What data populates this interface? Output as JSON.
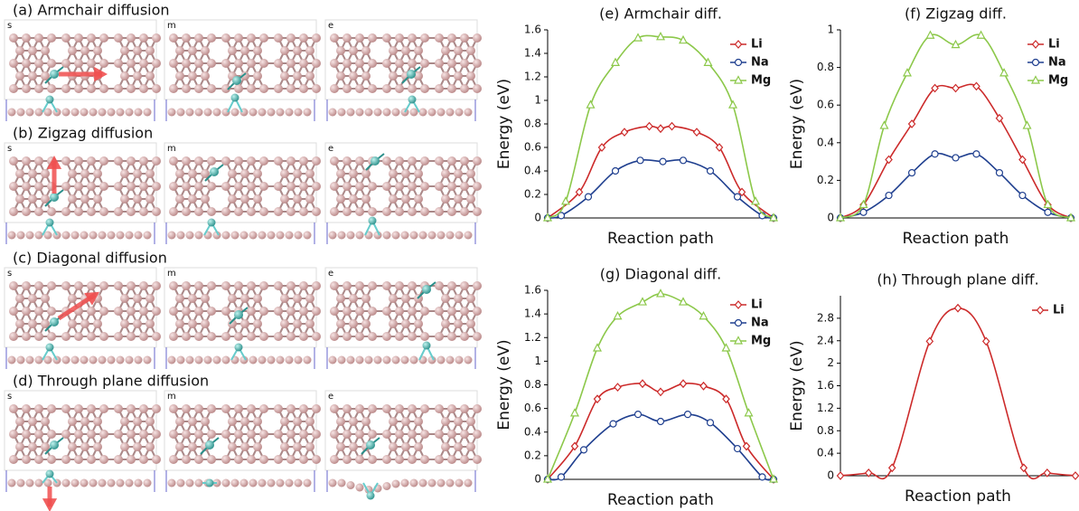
{
  "panels": [
    {
      "title": "(a) Armchair diffusion",
      "frames": [
        "s",
        "m",
        "e"
      ]
    },
    {
      "title": "(b) Zigzag diffusion",
      "frames": [
        "s",
        "m",
        "e"
      ]
    },
    {
      "title": "(c) Diagonal diffusion",
      "frames": [
        "s",
        "m",
        "e"
      ]
    },
    {
      "title": "(d) Through plane diffusion",
      "frames": [
        "s",
        "m",
        "e"
      ]
    }
  ],
  "chart_data": [
    {
      "type": "line",
      "title": "(e) Armchair diff.",
      "xlabel": "Reaction path",
      "ylabel": "Energy (eV)",
      "xlim": [
        0,
        1
      ],
      "ylim": [
        0,
        1.6
      ],
      "yticks": [
        0,
        0.2,
        0.4,
        0.6,
        0.8,
        1,
        1.2,
        1.4,
        1.6
      ],
      "legend": "upper right",
      "series": [
        {
          "name": "Li",
          "color": "#cc2a2a",
          "marker": "diamond",
          "x": [
            0,
            0.14,
            0.24,
            0.34,
            0.45,
            0.5,
            0.55,
            0.66,
            0.76,
            0.86,
            1
          ],
          "values": [
            0,
            0.22,
            0.6,
            0.73,
            0.78,
            0.76,
            0.78,
            0.73,
            0.6,
            0.22,
            0
          ]
        },
        {
          "name": "Na",
          "color": "#1f3f8f",
          "marker": "circle",
          "x": [
            0,
            0.06,
            0.18,
            0.3,
            0.41,
            0.51,
            0.6,
            0.72,
            0.84,
            0.95,
            1
          ],
          "values": [
            0,
            0.02,
            0.18,
            0.4,
            0.49,
            0.48,
            0.49,
            0.4,
            0.18,
            0.02,
            0
          ]
        },
        {
          "name": "Mg",
          "color": "#8cc84a",
          "marker": "triangle",
          "x": [
            0,
            0.08,
            0.19,
            0.3,
            0.4,
            0.5,
            0.6,
            0.71,
            0.82,
            0.92,
            1
          ],
          "values": [
            0,
            0.14,
            0.96,
            1.32,
            1.53,
            1.54,
            1.51,
            1.32,
            0.96,
            0.14,
            0
          ]
        }
      ]
    },
    {
      "type": "line",
      "title": "(f) Zigzag diff.",
      "xlabel": "Reaction path",
      "ylabel": "Energy (eV)",
      "xlim": [
        0,
        1
      ],
      "ylim": [
        0,
        1
      ],
      "yticks": [
        0,
        0.2,
        0.4,
        0.6,
        0.8,
        1
      ],
      "legend": "upper right",
      "series": [
        {
          "name": "Li",
          "color": "#cc2a2a",
          "marker": "diamond",
          "x": [
            0,
            0.1,
            0.21,
            0.31,
            0.41,
            0.5,
            0.59,
            0.69,
            0.79,
            0.9,
            1
          ],
          "values": [
            0,
            0.07,
            0.31,
            0.5,
            0.69,
            0.69,
            0.7,
            0.53,
            0.31,
            0.07,
            0
          ]
        },
        {
          "name": "Na",
          "color": "#1f3f8f",
          "marker": "circle",
          "x": [
            0,
            0.1,
            0.21,
            0.31,
            0.41,
            0.5,
            0.59,
            0.69,
            0.79,
            0.9,
            1
          ],
          "values": [
            0,
            0.03,
            0.12,
            0.24,
            0.34,
            0.32,
            0.34,
            0.24,
            0.12,
            0.03,
            0
          ]
        },
        {
          "name": "Mg",
          "color": "#8cc84a",
          "marker": "triangle",
          "x": [
            0,
            0.1,
            0.19,
            0.29,
            0.39,
            0.5,
            0.61,
            0.71,
            0.81,
            0.9,
            1
          ],
          "values": [
            0,
            0.07,
            0.49,
            0.77,
            0.97,
            0.92,
            0.97,
            0.77,
            0.49,
            0.07,
            0
          ]
        }
      ]
    },
    {
      "type": "line",
      "title": "(g) Diagonal diff.",
      "xlabel": "Reaction path",
      "ylabel": "Energy (eV)",
      "xlim": [
        0,
        1
      ],
      "ylim": [
        0,
        1.6
      ],
      "yticks": [
        0,
        0.2,
        0.4,
        0.6,
        0.8,
        1,
        1.2,
        1.4,
        1.6
      ],
      "legend": "upper right",
      "series": [
        {
          "name": "Li",
          "color": "#cc2a2a",
          "marker": "diamond",
          "x": [
            0,
            0.12,
            0.22,
            0.31,
            0.42,
            0.5,
            0.6,
            0.69,
            0.79,
            0.88,
            1
          ],
          "values": [
            0,
            0.28,
            0.68,
            0.78,
            0.81,
            0.74,
            0.81,
            0.79,
            0.68,
            0.28,
            0
          ]
        },
        {
          "name": "Na",
          "color": "#1f3f8f",
          "marker": "circle",
          "x": [
            0,
            0.06,
            0.16,
            0.29,
            0.4,
            0.5,
            0.62,
            0.72,
            0.84,
            0.95,
            1
          ],
          "values": [
            0,
            0.02,
            0.25,
            0.47,
            0.55,
            0.49,
            0.55,
            0.48,
            0.26,
            0.02,
            0
          ]
        },
        {
          "name": "Mg",
          "color": "#8cc84a",
          "marker": "triangle",
          "x": [
            0,
            0.12,
            0.22,
            0.31,
            0.42,
            0.5,
            0.6,
            0.69,
            0.79,
            0.89,
            1
          ],
          "values": [
            0,
            0.56,
            1.11,
            1.38,
            1.5,
            1.57,
            1.5,
            1.38,
            1.11,
            0.56,
            0
          ]
        }
      ]
    },
    {
      "type": "line",
      "title": "(h) Through plane diff.",
      "xlabel": "Reaction path",
      "ylabel": "Energy (eV)",
      "xlim": [
        0,
        1
      ],
      "ylim": [
        0,
        3.2
      ],
      "yticks": [
        0,
        0.4,
        0.8,
        1.2,
        1.6,
        2,
        2.4,
        2.8
      ],
      "legend": "upper right",
      "series": [
        {
          "name": "Li",
          "color": "#cc2a2a",
          "marker": "diamond",
          "x": [
            0,
            0.12,
            0.22,
            0.38,
            0.5,
            0.62,
            0.78,
            0.88,
            1
          ],
          "values": [
            0,
            0.05,
            0.14,
            2.39,
            2.98,
            2.39,
            0.14,
            0.05,
            0
          ]
        }
      ]
    }
  ]
}
